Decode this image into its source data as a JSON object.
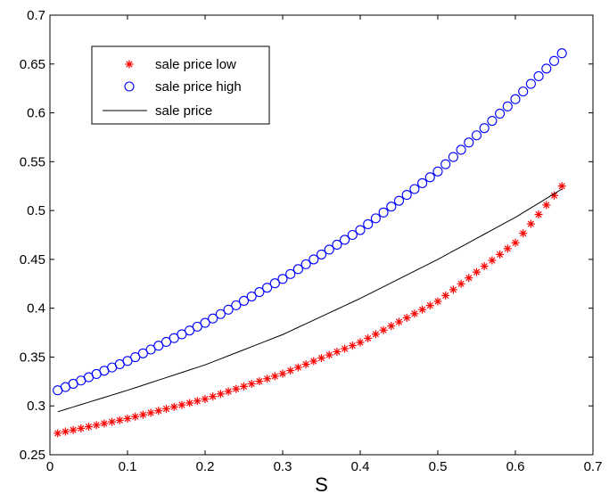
{
  "chart_data": {
    "type": "line",
    "xlabel": "S",
    "ylabel": "",
    "title": "",
    "xlim": [
      0,
      0.7
    ],
    "ylim": [
      0.25,
      0.7
    ],
    "x_ticks": [
      "0",
      "0.1",
      "0.2",
      "0.3",
      "0.4",
      "0.5",
      "0.6",
      "0.7"
    ],
    "y_ticks": [
      "0.25",
      "0.3",
      "0.35",
      "0.4",
      "0.45",
      "0.5",
      "0.55",
      "0.6",
      "0.65",
      "0.7"
    ],
    "grid": false,
    "legend_position": "top-left",
    "x_range": [
      0.01,
      0.66
    ],
    "x_step": 0.01,
    "series": [
      {
        "name": "sale price low",
        "marker": "asterisk",
        "line": "none",
        "color": "#ff0000",
        "x": [
          0.01,
          0.1,
          0.2,
          0.3,
          0.4,
          0.5,
          0.6,
          0.66
        ],
        "y": [
          0.272,
          0.287,
          0.307,
          0.333,
          0.365,
          0.407,
          0.467,
          0.525
        ]
      },
      {
        "name": "sale price high",
        "marker": "circle",
        "line": "none",
        "color": "#0000ff",
        "x": [
          0.01,
          0.1,
          0.2,
          0.3,
          0.4,
          0.5,
          0.6,
          0.66
        ],
        "y": [
          0.316,
          0.346,
          0.385,
          0.43,
          0.48,
          0.54,
          0.614,
          0.661
        ]
      },
      {
        "name": "sale price",
        "marker": "none",
        "line": "solid",
        "color": "#000000",
        "x": [
          0.01,
          0.1,
          0.2,
          0.3,
          0.4,
          0.5,
          0.6,
          0.66
        ],
        "y": [
          0.294,
          0.316,
          0.342,
          0.373,
          0.41,
          0.45,
          0.493,
          0.522
        ]
      }
    ]
  }
}
